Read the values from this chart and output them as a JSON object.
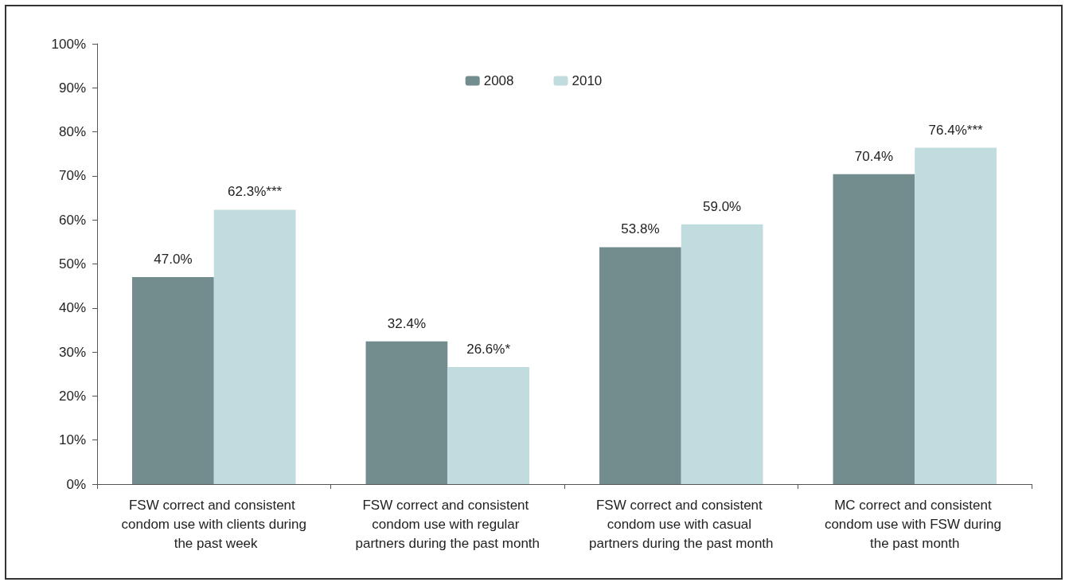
{
  "chart_data": {
    "type": "bar",
    "categories": [
      "FSW correct and consistent condom use with clients during the past week",
      "FSW correct and consistent condom use with regular partners during the past month",
      "FSW correct and consistent condom use with casual partners during the past month",
      "MC correct and consistent condom use with FSW during the past month"
    ],
    "series": [
      {
        "name": "2008",
        "color": "#738c8e",
        "values": [
          47.0,
          32.4,
          53.8,
          70.4
        ],
        "value_labels": [
          "47.0%",
          "32.4%",
          "53.8%",
          "70.4%"
        ]
      },
      {
        "name": "2010",
        "color": "#c0dcdf",
        "values": [
          62.3,
          26.6,
          59.0,
          76.4
        ],
        "value_labels": [
          "62.3%***",
          "26.6%*",
          "59.0%",
          "76.4%***"
        ]
      }
    ],
    "ylim": [
      0,
      100
    ],
    "yticks": [
      {
        "value": 0,
        "label": "0%"
      },
      {
        "value": 10,
        "label": "10%"
      },
      {
        "value": 20,
        "label": "20%"
      },
      {
        "value": 30,
        "label": "30%"
      },
      {
        "value": 40,
        "label": "40%"
      },
      {
        "value": 50,
        "label": "50%"
      },
      {
        "value": 60,
        "label": "60%"
      },
      {
        "value": 70,
        "label": "70%"
      },
      {
        "value": 80,
        "label": "80%"
      },
      {
        "value": 90,
        "label": "90%"
      },
      {
        "value": 100,
        "label": "100%"
      }
    ],
    "grid": false,
    "legend": "top"
  }
}
